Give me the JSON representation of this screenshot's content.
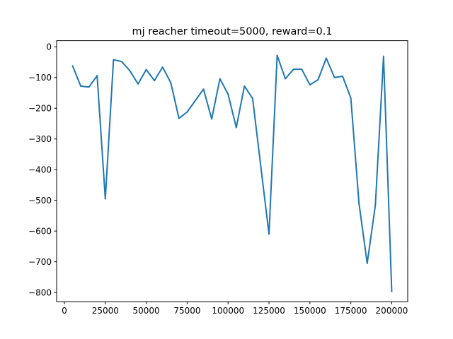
{
  "chart_data": {
    "type": "line",
    "title": "mj reacher timeout=5000, reward=0.1",
    "xlabel": "",
    "ylabel": "",
    "xlim": [
      -4750,
      209750
    ],
    "ylim": [
      -830,
      20
    ],
    "xticks": [
      0,
      25000,
      50000,
      75000,
      100000,
      125000,
      150000,
      175000,
      200000
    ],
    "xtick_labels": [
      "0",
      "25000",
      "50000",
      "75000",
      "100000",
      "125000",
      "150000",
      "175000",
      "200000"
    ],
    "yticks": [
      0,
      -100,
      -200,
      -300,
      -400,
      -500,
      -600,
      -700,
      -800
    ],
    "ytick_labels": [
      "0",
      "−100",
      "−200",
      "−300",
      "−400",
      "−500",
      "−600",
      "−700",
      "−800"
    ],
    "grid": false,
    "legend": "none",
    "series": [
      {
        "color": "#1f77b4",
        "x": [
          5000,
          10000,
          15000,
          20000,
          25000,
          30000,
          35000,
          40000,
          45000,
          50000,
          55000,
          60000,
          65000,
          70000,
          75000,
          80000,
          85000,
          90000,
          95000,
          100000,
          105000,
          110000,
          115000,
          120000,
          125000,
          130000,
          135000,
          140000,
          145000,
          150000,
          155000,
          160000,
          165000,
          170000,
          175000,
          180000,
          185000,
          190000,
          195000,
          200000
        ],
        "y": [
          -62,
          -128,
          -131,
          -94,
          -495,
          -42,
          -48,
          -78,
          -121,
          -74,
          -110,
          -66,
          -117,
          -233,
          -212,
          -175,
          -138,
          -235,
          -104,
          -154,
          -263,
          -128,
          -168,
          -390,
          -610,
          -28,
          -104,
          -73,
          -73,
          -124,
          -107,
          -37,
          -100,
          -96,
          -167,
          -510,
          -705,
          -515,
          -31,
          -797
        ]
      }
    ]
  }
}
